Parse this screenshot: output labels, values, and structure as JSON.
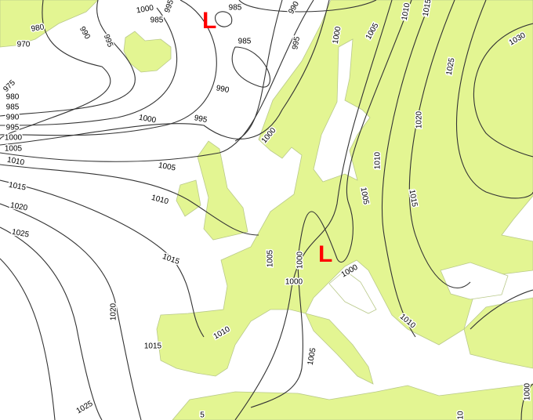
{
  "map": {
    "colors": {
      "land": "#e3f592",
      "sea": "#ffffff",
      "isobar": "#333333",
      "low_marker": "#ff0000"
    },
    "low_pressure_markers": [
      "L",
      "L"
    ],
    "isobar_labels": [
      "985",
      "980",
      "970",
      "990",
      "995",
      "1000",
      "995",
      "985",
      "985",
      "990",
      "975",
      "980",
      "985",
      "990",
      "995",
      "1000",
      "1005",
      "1010",
      "1015",
      "1020",
      "1025",
      "1000",
      "995",
      "1005",
      "1010",
      "1015",
      "1020",
      "1015",
      "1025",
      "1000",
      "990",
      "995",
      "1000",
      "1005",
      "1010",
      "1015",
      "1030",
      "1025",
      "1020",
      "1010",
      "1005",
      "1015",
      "1005",
      "1000",
      "1000",
      "1000",
      "1010",
      "1005",
      "1010",
      "1000",
      "10",
      "5"
    ]
  }
}
